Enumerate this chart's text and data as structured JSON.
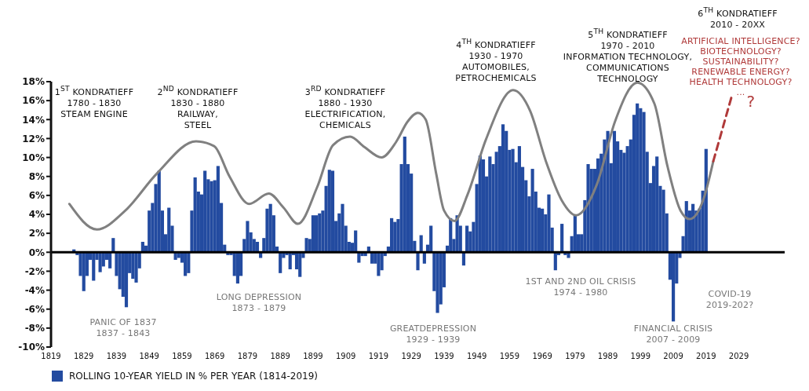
{
  "chart_data": {
    "type": "bar",
    "xlim": [
      1819,
      2043
    ],
    "xticks": [
      1819,
      1829,
      1839,
      1849,
      1859,
      1869,
      1879,
      1889,
      1899,
      1909,
      1919,
      1929,
      1939,
      1949,
      1959,
      1969,
      1979,
      1989,
      1999,
      2009,
      2019,
      2029
    ],
    "ylim": [
      -10,
      18
    ],
    "yticks": [
      {
        "value": -10,
        "label": "-10%"
      },
      {
        "value": -8,
        "label": "-8%"
      },
      {
        "value": -6,
        "label": "-6%"
      },
      {
        "value": -4,
        "label": "-4%"
      },
      {
        "value": -2,
        "label": "-2%"
      },
      {
        "value": 0,
        "label": "0%"
      },
      {
        "value": 2,
        "label": "2%"
      },
      {
        "value": 4,
        "label": "4%"
      },
      {
        "value": 6,
        "label": "6%"
      },
      {
        "value": 8,
        "label": "8%"
      },
      {
        "value": 10,
        "label": "10%"
      },
      {
        "value": 12,
        "label": "12%"
      },
      {
        "value": 14,
        "label": "14%"
      },
      {
        "value": 16,
        "label": "16%"
      },
      {
        "value": 18,
        "label": "18%"
      }
    ],
    "legend": "bottom left",
    "ref_lines": [
      {
        "axis": "y",
        "value": 0,
        "color": "#000000"
      }
    ],
    "series": [
      {
        "name": "ROLLING 10-YEAR YIELD IN % PER YEAR (1814-2019)",
        "color": "#234ba0",
        "x": [
          1826,
          1827,
          1828,
          1829,
          1830,
          1831,
          1832,
          1833,
          1834,
          1835,
          1836,
          1837,
          1838,
          1839,
          1840,
          1841,
          1842,
          1843,
          1844,
          1845,
          1846,
          1847,
          1848,
          1849,
          1850,
          1851,
          1852,
          1853,
          1854,
          1855,
          1856,
          1857,
          1858,
          1859,
          1860,
          1861,
          1862,
          1863,
          1864,
          1865,
          1866,
          1867,
          1868,
          1869,
          1870,
          1871,
          1872,
          1873,
          1874,
          1875,
          1876,
          1877,
          1878,
          1879,
          1880,
          1881,
          1882,
          1883,
          1884,
          1885,
          1886,
          1887,
          1888,
          1889,
          1890,
          1891,
          1892,
          1893,
          1894,
          1895,
          1896,
          1897,
          1898,
          1899,
          1900,
          1901,
          1902,
          1903,
          1904,
          1905,
          1906,
          1907,
          1908,
          1909,
          1910,
          1911,
          1912,
          1913,
          1914,
          1915,
          1916,
          1917,
          1918,
          1919,
          1920,
          1921,
          1922,
          1923,
          1924,
          1925,
          1926,
          1927,
          1928,
          1929,
          1930,
          1931,
          1932,
          1933,
          1934,
          1935,
          1936,
          1937,
          1938,
          1939,
          1940,
          1941,
          1942,
          1943,
          1944,
          1945,
          1946,
          1947,
          1948,
          1949,
          1950,
          1951,
          1952,
          1953,
          1954,
          1955,
          1956,
          1957,
          1958,
          1959,
          1960,
          1961,
          1962,
          1963,
          1964,
          1965,
          1966,
          1967,
          1968,
          1969,
          1970,
          1971,
          1972,
          1973,
          1974,
          1975,
          1976,
          1977,
          1978,
          1979,
          1980,
          1981,
          1982,
          1983,
          1984,
          1985,
          1986,
          1987,
          1988,
          1989,
          1990,
          1991,
          1992,
          1993,
          1994,
          1995,
          1996,
          1997,
          1998,
          1999,
          2000,
          2001,
          2002,
          2003,
          2004,
          2005,
          2006,
          2007,
          2008,
          2009,
          2010,
          2011,
          2012,
          2013,
          2014,
          2015,
          2016,
          2017,
          2018,
          2019
        ],
        "values": [
          0.3,
          -0.3,
          -2.5,
          -4.1,
          -2.5,
          -0.8,
          -3.0,
          -0.8,
          -2.1,
          -1.5,
          -0.8,
          -1.7,
          1.5,
          -2.5,
          -3.9,
          -4.7,
          -5.8,
          -2.2,
          -2.8,
          -3.2,
          -1.7,
          1.1,
          0.7,
          4.4,
          5.2,
          7.2,
          8.6,
          4.4,
          1.9,
          4.7,
          2.8,
          -0.8,
          -0.6,
          -1.1,
          -2.5,
          -2.2,
          4.4,
          7.9,
          6.4,
          6.1,
          8.6,
          7.7,
          7.5,
          7.6,
          9.1,
          5.2,
          0.8,
          -0.3,
          -0.3,
          -2.5,
          -3.3,
          -2.5,
          1.4,
          3.3,
          2.1,
          1.4,
          1.1,
          -0.6,
          1.5,
          4.6,
          5.1,
          3.9,
          0.6,
          -2.2,
          -0.6,
          -0.3,
          -1.8,
          -0.3,
          -1.8,
          -2.6,
          -0.6,
          1.5,
          1.4,
          3.9,
          3.9,
          4.1,
          4.4,
          7.0,
          8.7,
          8.6,
          3.3,
          4.1,
          5.1,
          2.8,
          1.1,
          1.0,
          2.3,
          -1.1,
          -0.4,
          -0.4,
          0.6,
          -1.2,
          -1.2,
          -2.5,
          -1.9,
          -0.4,
          0.6,
          3.6,
          3.2,
          3.5,
          9.3,
          12.2,
          9.3,
          8.3,
          1.2,
          -1.9,
          1.8,
          -1.2,
          0.8,
          2.8,
          -4.1,
          -6.4,
          -5.5,
          -3.7,
          0.7,
          3.6,
          1.4,
          3.9,
          2.8,
          -1.4,
          2.8,
          2.2,
          3.2,
          7.2,
          10.2,
          9.8,
          8.0,
          10.1,
          9.3,
          10.6,
          11.2,
          13.5,
          12.8,
          10.8,
          10.9,
          9.5,
          11.2,
          9.0,
          7.6,
          5.9,
          8.8,
          6.4,
          4.7,
          4.6,
          4.0,
          6.1,
          2.6,
          -1.9,
          -0.3,
          3.0,
          -0.3,
          -0.6,
          1.7,
          3.9,
          1.9,
          1.9,
          5.5,
          9.3,
          8.8,
          8.8,
          9.9,
          10.4,
          11.9,
          12.8,
          9.4,
          12.8,
          11.7,
          10.8,
          10.5,
          11.2,
          11.9,
          14.5,
          15.7,
          15.2,
          14.8,
          10.6,
          7.3,
          9.1,
          10.1,
          7.0,
          6.6,
          4.1,
          -2.9,
          -7.3,
          -3.3,
          -0.6,
          1.7,
          5.4,
          4.4,
          5.1,
          4.4,
          4.6,
          6.5,
          10.9
        ]
      },
      {
        "type": "line",
        "color": "#808080",
        "line_style": "solid",
        "x": [
          1824.6,
          1833,
          1841.7,
          1851.3,
          1863.3,
          1868.8,
          1873.5,
          1879.5,
          1885.5,
          1890,
          1894.4,
          1900.3,
          1905.1,
          1910.3,
          1914.7,
          1919.9,
          1924.3,
          1927.9,
          1931,
          1933.4,
          1936.6,
          1939,
          1942.2,
          1946.2,
          1951.8,
          1960.1,
          1965.3,
          1970.1,
          1974.9,
          1979.3,
          1985.7,
          1991.2,
          1998,
          2003.2,
          2007.2,
          2011.2,
          2014,
          2018.4,
          2021.2
        ],
        "values": [
          5.1,
          2.4,
          4.4,
          8.3,
          11.7,
          11.2,
          8.0,
          5.1,
          6.2,
          4.7,
          3.0,
          6.9,
          11.3,
          12.2,
          11.1,
          10.0,
          11.6,
          13.8,
          14.7,
          14.0,
          8.3,
          4.4,
          3.3,
          6.1,
          11.9,
          17.1,
          14.9,
          9.6,
          5.5,
          3.9,
          7.2,
          13.8,
          17.9,
          15.7,
          9.1,
          4.4,
          3.5,
          5.8,
          9.6
        ]
      },
      {
        "type": "line",
        "color": "#b03a3a",
        "line_style": "dashed",
        "x": [
          2021.2,
          2026.7
        ],
        "values": [
          9.6,
          16.3
        ]
      }
    ],
    "annotations": [
      "1$^{ST}$ KONDRATIEFF\n1780 - 1830\nSTEAM ENGINE",
      "2$^{ND}$ KONDRATIEFF\n1830 - 1880\nRAILWAY,\nSTEEL",
      "3$^{RD}$ KONDRATIEFF\n1880 - 1930\nELECTRIFICATION,\nCHEMICALS",
      "4$^{TH}$ KONDRATIEFF\n1930 - 1970\nAUTOMOBILES,\nPETROCHEMICALS",
      "5$^{TH}$ KONDRATIEFF\n1970 - 2010\nINFORMATION TECHNOLOGY,\nCOMMUNICATIONS\nTECHNOLOGY",
      "6$^{TH}$ KONDRATIEFF\n2010 - 20XX",
      "ARTIFICIAL INTELLIGENCE?\nBIOTECHNOLOGY?\nSUSTAINABILITY?\nRENEWABLE ENERGY?\nHEALTH TECHNOLOGY?\n...",
      "?",
      "PANIC OF 1837\n1837 - 1843",
      "LONG DEPRESSION\n1873 - 1879",
      "GREATDEPRESSION\n1929 - 1939",
      "1ST AND 2ND OIL CRISIS\n1974 - 1980",
      "FINANCIAL CRISIS\n2007 - 2009",
      "COVID-19\n2019-202?"
    ]
  }
}
